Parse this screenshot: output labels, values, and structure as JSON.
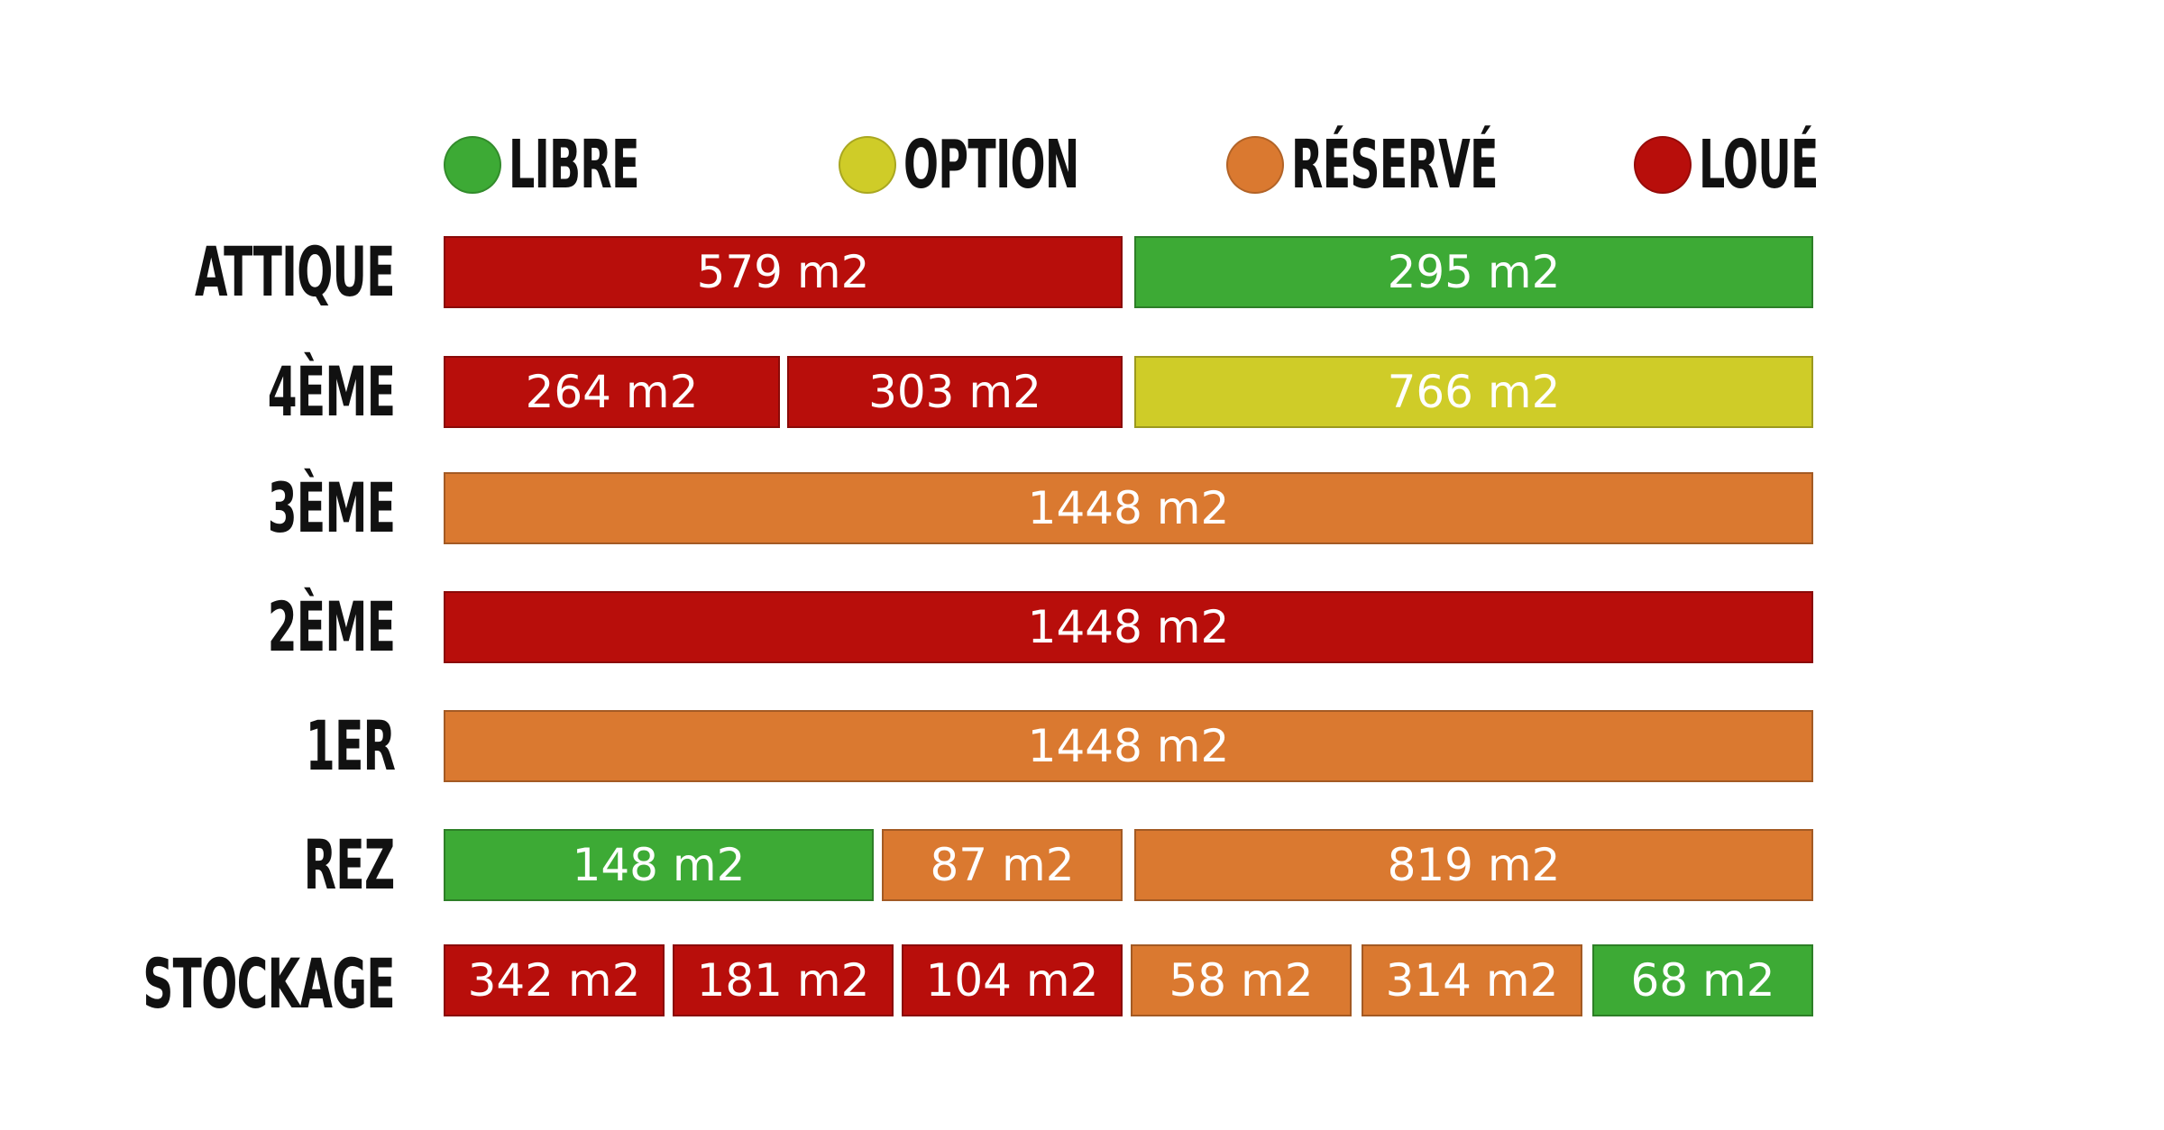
{
  "legend": [
    {
      "key": "libre",
      "label": "LIBRE",
      "color": "#3daa35"
    },
    {
      "key": "option",
      "label": "OPTION",
      "color": "#cfcc28"
    },
    {
      "key": "reserve",
      "label": "RÉSERVÉ",
      "color": "#da7930"
    },
    {
      "key": "loue",
      "label": "LOUÉ",
      "color": "#b80e0b"
    }
  ],
  "floors": [
    {
      "key": "attique",
      "label": "ATTIQUE",
      "units": [
        {
          "area": "579 m2",
          "status": "loue"
        },
        {
          "area": "295 m2",
          "status": "libre"
        }
      ]
    },
    {
      "key": "4eme",
      "label": "4ÈME",
      "units": [
        {
          "area": "264 m2",
          "status": "loue"
        },
        {
          "area": "303 m2",
          "status": "loue"
        },
        {
          "area": "766 m2",
          "status": "option"
        }
      ]
    },
    {
      "key": "3eme",
      "label": "3ÈME",
      "units": [
        {
          "area": "1448 m2",
          "status": "reserve"
        }
      ]
    },
    {
      "key": "2eme",
      "label": "2ÈME",
      "units": [
        {
          "area": "1448 m2",
          "status": "loue"
        }
      ]
    },
    {
      "key": "1er",
      "label": "1ER",
      "units": [
        {
          "area": "1448 m2",
          "status": "reserve"
        }
      ]
    },
    {
      "key": "rez",
      "label": "REZ",
      "units": [
        {
          "area": "148 m2",
          "status": "libre"
        },
        {
          "area": "87 m2",
          "status": "reserve"
        },
        {
          "area": "819 m2",
          "status": "reserve"
        }
      ]
    },
    {
      "key": "stockage",
      "label": "STOCKAGE",
      "units": [
        {
          "area": "342 m2",
          "status": "loue"
        },
        {
          "area": "181 m2",
          "status": "loue"
        },
        {
          "area": "104 m2",
          "status": "loue"
        },
        {
          "area": "58 m2",
          "status": "reserve"
        },
        {
          "area": "314 m2",
          "status": "reserve"
        },
        {
          "area": "68 m2",
          "status": "libre"
        }
      ]
    }
  ]
}
